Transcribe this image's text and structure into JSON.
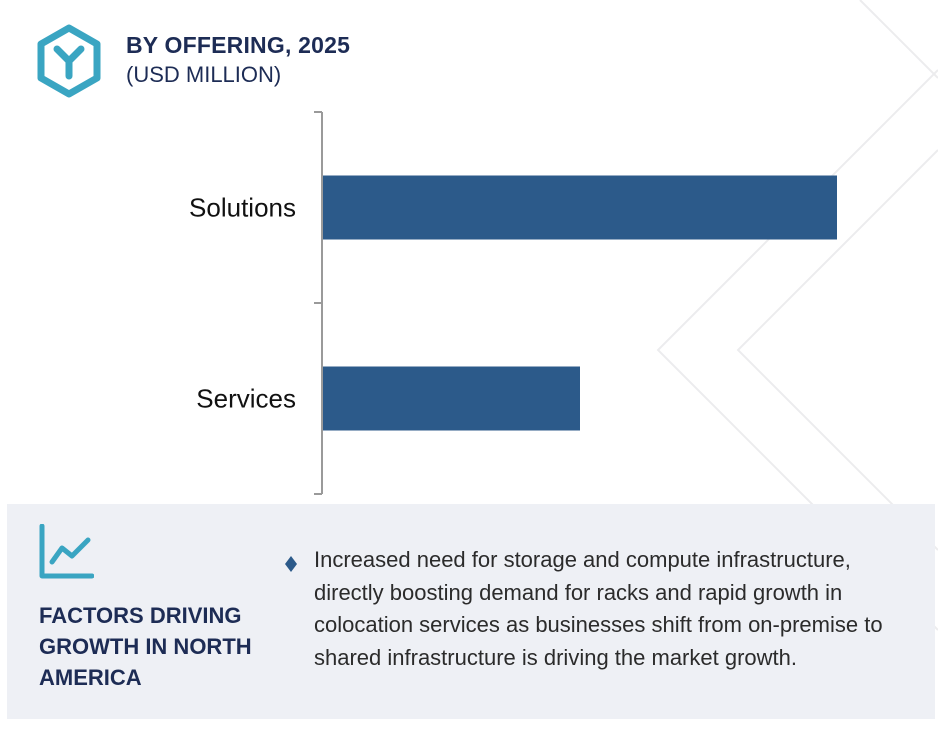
{
  "header": {
    "title": "BY OFFERING, 2025",
    "subtitle": "(USD MILLION)",
    "logo_icon": "hexagon-y-logo-icon"
  },
  "chart_data": {
    "type": "bar",
    "orientation": "horizontal",
    "categories": [
      "Solutions",
      "Services"
    ],
    "values": [
      100,
      50
    ],
    "xlabel": "",
    "ylabel": "",
    "xlim": [
      0,
      100
    ],
    "grid": false,
    "bar_color": "#2c5a8a"
  },
  "factors": {
    "icon": "line-chart-trend-icon",
    "bullet_icon": "diamond-bullet-icon",
    "title": "FACTORS DRIVING GROWTH IN NORTH AMERICA",
    "text": "Increased need for storage and compute infrastructure, directly boosting demand for racks and rapid growth in colocation services as businesses shift from on-premise to shared infrastructure is driving the market growth."
  },
  "colors": {
    "accent": "#3aa5c2",
    "navy": "#1d2c55",
    "bar": "#2c5a8a",
    "panel": "#eef0f5"
  }
}
